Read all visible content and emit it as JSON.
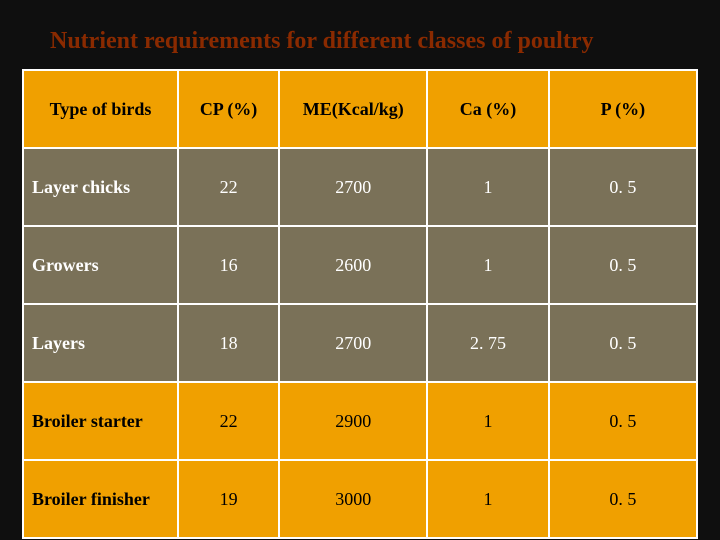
{
  "title": "Nutrient requirements for different classes of poultry",
  "table": {
    "type": "table",
    "header_bg": "#f0a000",
    "row_colors": {
      "olive": "#7a7158",
      "orange": "#f0a000"
    },
    "border_color": "#ffffff",
    "title_color": "#8a2a00",
    "background_color": "#0f0f0f",
    "title_fontsize": 24,
    "cell_fontsize": 18,
    "columns": [
      "Type of birds",
      "CP (%)",
      "ME(Kcal/kg)",
      "Ca (%)",
      "P (%)"
    ],
    "column_widths_pct": [
      23,
      15,
      22,
      18,
      22
    ],
    "rows": [
      {
        "style": "olive",
        "cells": [
          "Layer chicks",
          "22",
          "2700",
          "1",
          "0. 5"
        ]
      },
      {
        "style": "olive",
        "cells": [
          "Growers",
          "16",
          "2600",
          "1",
          "0. 5"
        ]
      },
      {
        "style": "olive",
        "cells": [
          "Layers",
          "18",
          "2700",
          "2. 75",
          "0. 5"
        ]
      },
      {
        "style": "orange",
        "cells": [
          "Broiler starter",
          "22",
          "2900",
          "1",
          "0. 5"
        ]
      },
      {
        "style": "orange",
        "cells": [
          "Broiler finisher",
          "19",
          "3000",
          "1",
          "0. 5"
        ]
      }
    ]
  }
}
